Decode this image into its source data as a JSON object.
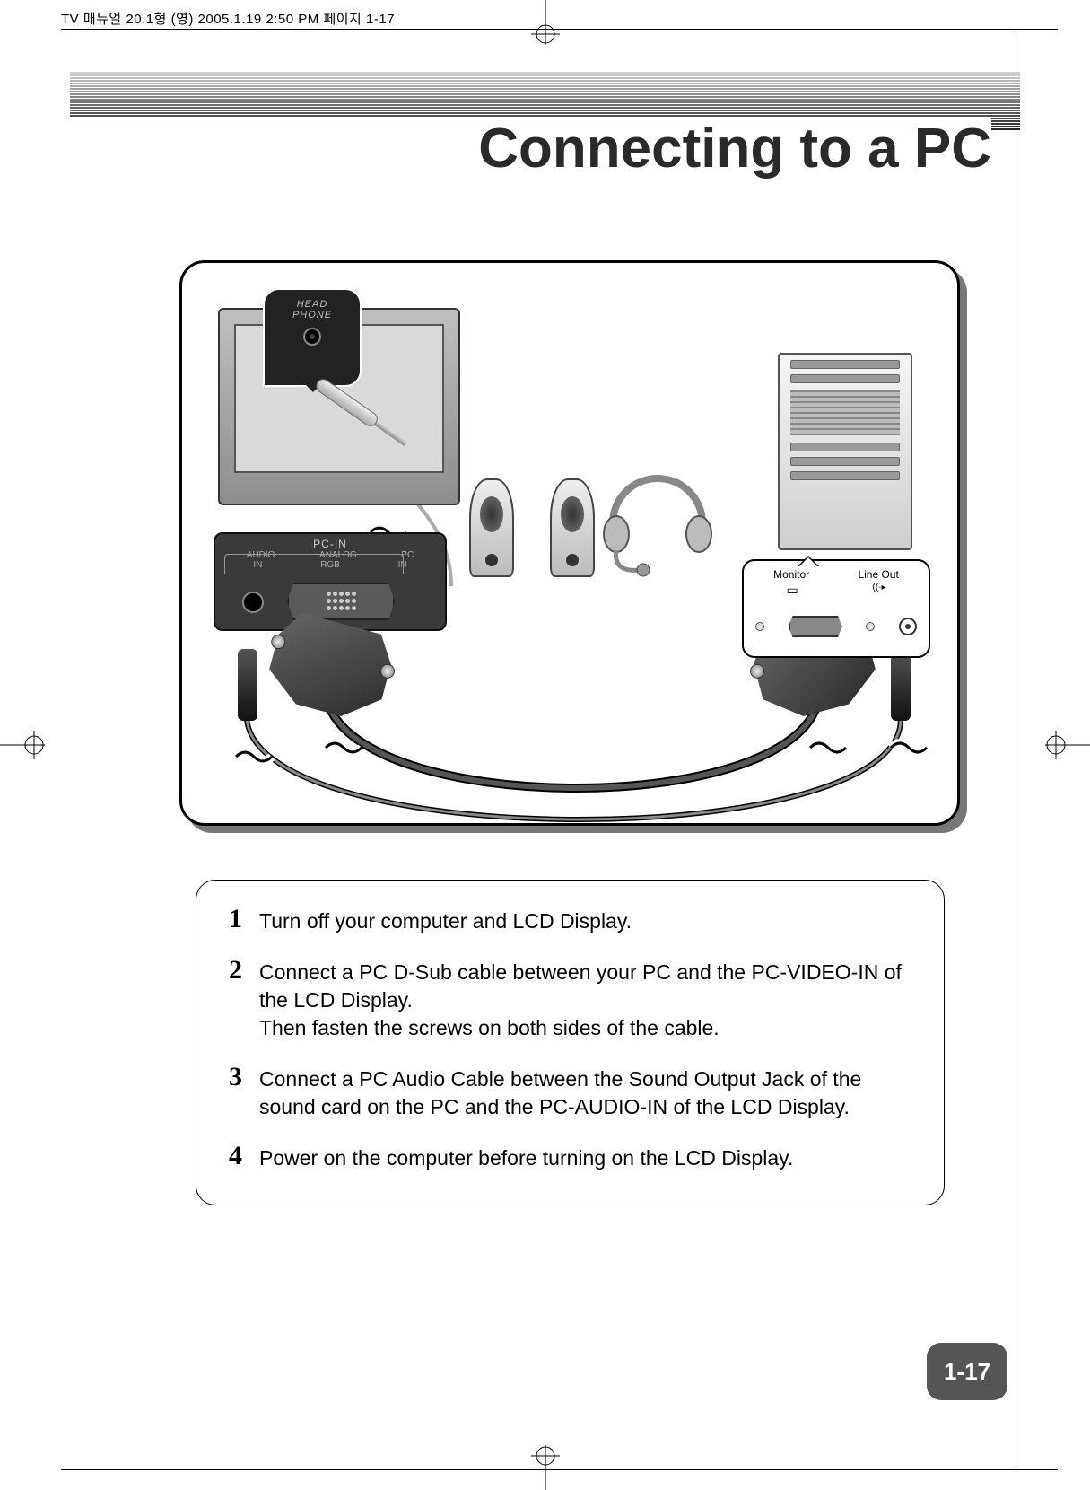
{
  "header_text": "TV 매뉴얼 20.1형 (영)  2005.1.19 2:50 PM  페이지 1-17",
  "title": "Connecting to a PC",
  "page_number": "1-17",
  "diagram": {
    "headphone_label": "HEAD\nPHONE",
    "pc_in_title": "PC-IN",
    "pc_in_left_top": "AUDIO",
    "pc_in_left_bottom": "IN",
    "pc_in_mid_top": "ANALOG",
    "pc_in_mid_bottom": "RGB",
    "pc_in_right_top": "PC",
    "pc_in_right_bottom": "IN",
    "callout_monitor": "Monitor",
    "callout_lineout": "Line Out",
    "callout_lineout_icon": "((·▸"
  },
  "band_colors": [
    "#cfcfcf",
    "#c7c7c7",
    "#bfbfbf",
    "#b7b7b7",
    "#afafaf",
    "#a7a7a7",
    "#9f9f9f",
    "#979797",
    "#8f8f8f",
    "#878787",
    "#7f7f7f",
    "#777777",
    "#6f6f6f",
    "#676767",
    "#5f5f5f",
    "#575757",
    "#4f4f4f",
    "#474747",
    "#3f3f3f",
    "#373737",
    "#2f2f2f",
    "#272727"
  ],
  "steps": [
    {
      "num": "1",
      "text": "Turn off your computer and LCD Display."
    },
    {
      "num": "2",
      "text": "Connect a PC D-Sub cable between your PC and the PC-VIDEO-IN of the LCD Display.\nThen fasten the screws on both sides of the cable."
    },
    {
      "num": "3",
      "text": "Connect a PC Audio Cable between the Sound Output Jack of the sound card on the PC and the PC-AUDIO-IN of the LCD Display."
    },
    {
      "num": "4",
      "text": "Power on the computer before turning on the LCD Display."
    }
  ]
}
